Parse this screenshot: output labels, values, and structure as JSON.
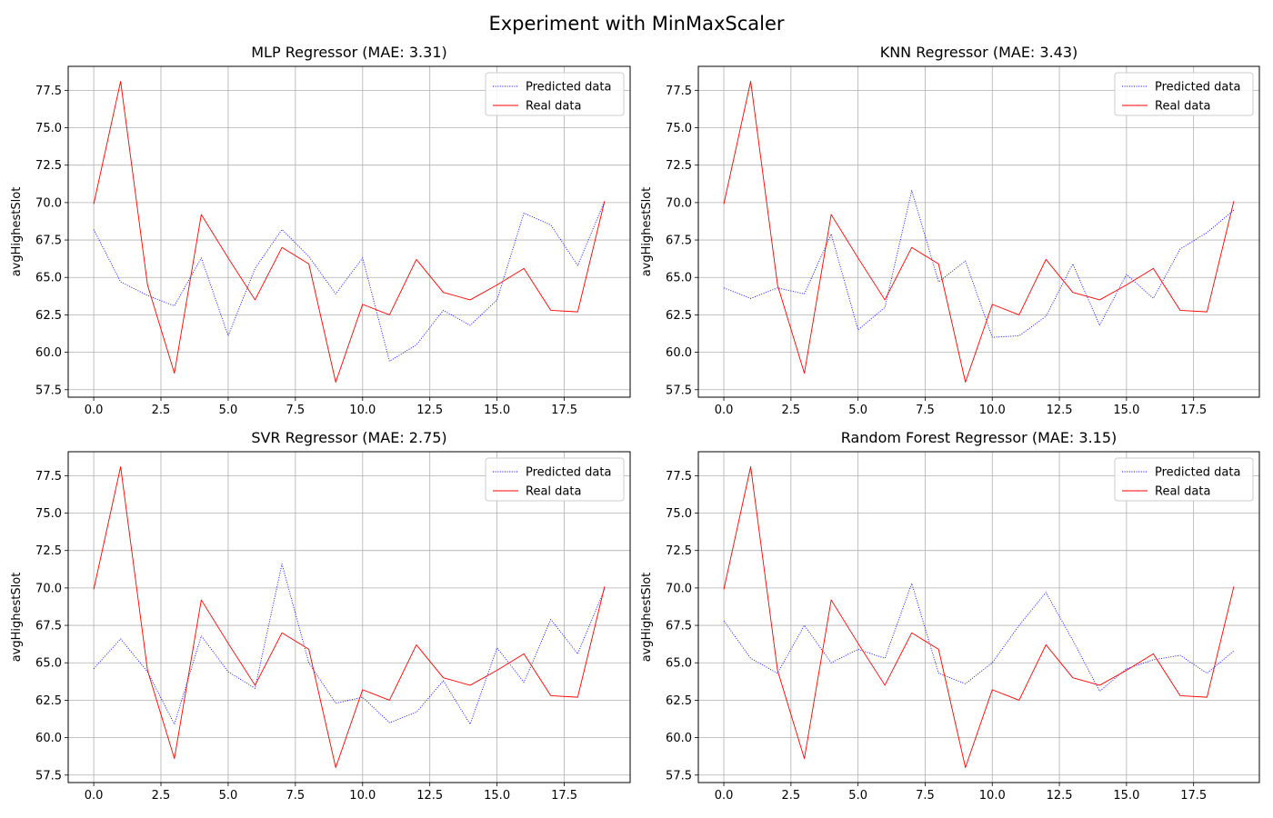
{
  "figure": {
    "suptitle": "Experiment with MinMaxScaler"
  },
  "chart_data": [
    {
      "type": "line",
      "title": "MLP Regressor (MAE: 3.31)",
      "xlabel": "",
      "ylabel": "avgHighestSlot",
      "xlim": [
        -0.95,
        19.95
      ],
      "ylim": [
        57.0,
        79.1
      ],
      "xticks": [
        "0.0",
        "2.5",
        "5.0",
        "7.5",
        "10.0",
        "12.5",
        "15.0",
        "17.5"
      ],
      "yticks": [
        "57.5",
        "60.0",
        "62.5",
        "65.0",
        "67.5",
        "70.0",
        "72.5",
        "75.0",
        "77.5"
      ],
      "grid": true,
      "legend_position": "upper-right",
      "x": [
        0,
        1,
        2,
        3,
        4,
        5,
        6,
        7,
        8,
        9,
        10,
        11,
        12,
        13,
        14,
        15,
        16,
        17,
        18,
        19
      ],
      "series": [
        {
          "name": "Predicted data",
          "color": "#0000ff",
          "style": "dotted",
          "values": [
            68.2,
            64.7,
            63.8,
            63.1,
            66.3,
            61.1,
            65.6,
            68.2,
            66.4,
            63.9,
            66.3,
            59.4,
            60.5,
            62.8,
            61.8,
            63.5,
            69.3,
            68.5,
            65.8,
            70.1
          ]
        },
        {
          "name": "Real data",
          "color": "#ff0000",
          "style": "solid",
          "values": [
            69.9,
            78.1,
            64.5,
            58.6,
            69.2,
            66.3,
            63.5,
            67.0,
            65.9,
            58.0,
            63.2,
            62.5,
            66.2,
            64.0,
            63.5,
            64.5,
            65.6,
            62.8,
            62.7,
            70.1
          ]
        }
      ]
    },
    {
      "type": "line",
      "title": "KNN Regressor (MAE: 3.43)",
      "xlabel": "",
      "ylabel": "avgHighestSlot",
      "xlim": [
        -0.95,
        19.95
      ],
      "ylim": [
        57.0,
        79.1
      ],
      "xticks": [
        "0.0",
        "2.5",
        "5.0",
        "7.5",
        "10.0",
        "12.5",
        "15.0",
        "17.5"
      ],
      "yticks": [
        "57.5",
        "60.0",
        "62.5",
        "65.0",
        "67.5",
        "70.0",
        "72.5",
        "75.0",
        "77.5"
      ],
      "grid": true,
      "legend_position": "upper-right",
      "x": [
        0,
        1,
        2,
        3,
        4,
        5,
        6,
        7,
        8,
        9,
        10,
        11,
        12,
        13,
        14,
        15,
        16,
        17,
        18,
        19
      ],
      "series": [
        {
          "name": "Predicted data",
          "color": "#0000ff",
          "style": "dotted",
          "values": [
            64.3,
            63.6,
            64.3,
            63.9,
            67.9,
            61.5,
            63.0,
            70.8,
            64.7,
            66.1,
            61.0,
            61.1,
            62.4,
            65.9,
            61.8,
            65.2,
            63.6,
            66.9,
            68.0,
            69.5
          ]
        },
        {
          "name": "Real data",
          "color": "#ff0000",
          "style": "solid",
          "values": [
            69.9,
            78.1,
            64.5,
            58.6,
            69.2,
            66.3,
            63.5,
            67.0,
            65.9,
            58.0,
            63.2,
            62.5,
            66.2,
            64.0,
            63.5,
            64.5,
            65.6,
            62.8,
            62.7,
            70.1
          ]
        }
      ]
    },
    {
      "type": "line",
      "title": "SVR Regressor (MAE: 2.75)",
      "xlabel": "",
      "ylabel": "avgHighestSlot",
      "xlim": [
        -0.95,
        19.95
      ],
      "ylim": [
        57.0,
        79.1
      ],
      "xticks": [
        "0.0",
        "2.5",
        "5.0",
        "7.5",
        "10.0",
        "12.5",
        "15.0",
        "17.5"
      ],
      "yticks": [
        "57.5",
        "60.0",
        "62.5",
        "65.0",
        "67.5",
        "70.0",
        "72.5",
        "75.0",
        "77.5"
      ],
      "grid": true,
      "legend_position": "upper-right",
      "x": [
        0,
        1,
        2,
        3,
        4,
        5,
        6,
        7,
        8,
        9,
        10,
        11,
        12,
        13,
        14,
        15,
        16,
        17,
        18,
        19
      ],
      "series": [
        {
          "name": "Predicted data",
          "color": "#0000ff",
          "style": "dotted",
          "values": [
            64.6,
            66.6,
            64.4,
            60.9,
            66.8,
            64.4,
            63.3,
            71.6,
            65.0,
            62.3,
            62.7,
            61.0,
            61.7,
            63.8,
            60.9,
            66.0,
            63.7,
            67.9,
            65.6,
            69.9
          ]
        },
        {
          "name": "Real data",
          "color": "#ff0000",
          "style": "solid",
          "values": [
            69.9,
            78.1,
            64.5,
            58.6,
            69.2,
            66.3,
            63.5,
            67.0,
            65.9,
            58.0,
            63.2,
            62.5,
            66.2,
            64.0,
            63.5,
            64.5,
            65.6,
            62.8,
            62.7,
            70.1
          ]
        }
      ]
    },
    {
      "type": "line",
      "title": "Random Forest Regressor (MAE: 3.15)",
      "xlabel": "",
      "ylabel": "avgHighestSlot",
      "xlim": [
        -0.95,
        19.95
      ],
      "ylim": [
        57.0,
        79.1
      ],
      "xticks": [
        "0.0",
        "2.5",
        "5.0",
        "7.5",
        "10.0",
        "12.5",
        "15.0",
        "17.5"
      ],
      "yticks": [
        "57.5",
        "60.0",
        "62.5",
        "65.0",
        "67.5",
        "70.0",
        "72.5",
        "75.0",
        "77.5"
      ],
      "grid": true,
      "legend_position": "upper-right",
      "x": [
        0,
        1,
        2,
        3,
        4,
        5,
        6,
        7,
        8,
        9,
        10,
        11,
        12,
        13,
        14,
        15,
        16,
        17,
        18,
        19
      ],
      "series": [
        {
          "name": "Predicted data",
          "color": "#0000ff",
          "style": "dotted",
          "values": [
            67.8,
            65.3,
            64.3,
            67.5,
            65.0,
            65.9,
            65.3,
            70.3,
            64.3,
            63.6,
            65.0,
            67.5,
            69.7,
            66.5,
            63.1,
            64.6,
            65.2,
            65.5,
            64.3,
            65.8
          ]
        },
        {
          "name": "Real data",
          "color": "#ff0000",
          "style": "solid",
          "values": [
            69.9,
            78.1,
            64.5,
            58.6,
            69.2,
            66.3,
            63.5,
            67.0,
            65.9,
            58.0,
            63.2,
            62.5,
            66.2,
            64.0,
            63.5,
            64.5,
            65.6,
            62.8,
            62.7,
            70.1
          ]
        }
      ]
    }
  ]
}
